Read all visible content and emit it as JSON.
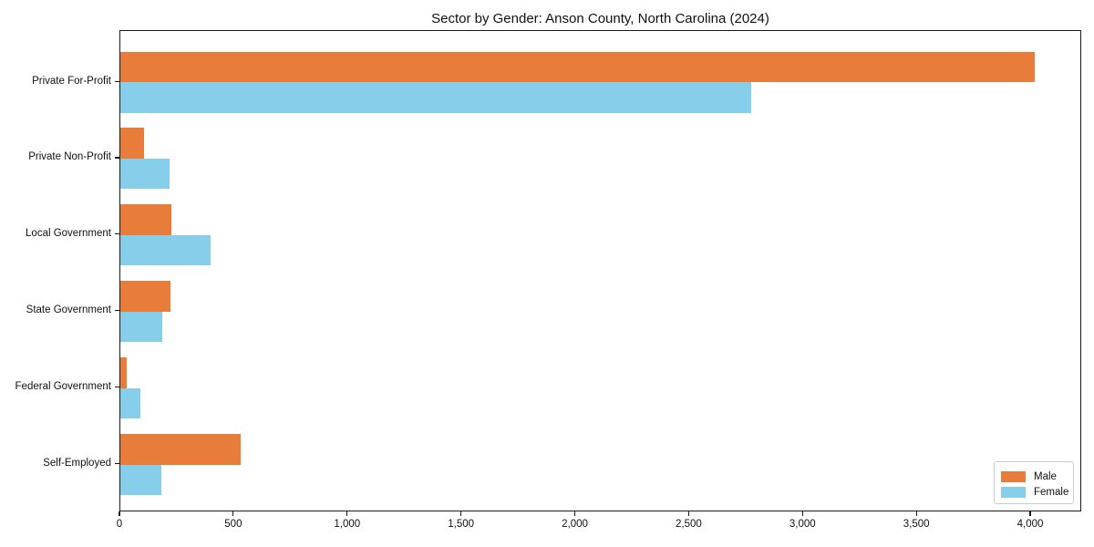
{
  "chart_data": {
    "type": "bar",
    "orientation": "horizontal",
    "title": "Sector by Gender: Anson County, North Carolina (2024)",
    "categories": [
      "Private For-Profit",
      "Private Non-Profit",
      "Local Government",
      "State Government",
      "Federal Government",
      "Self-Employed"
    ],
    "series": [
      {
        "name": "Male",
        "color": "#E87D3B",
        "values": [
          4015,
          105,
          225,
          220,
          28,
          530
        ]
      },
      {
        "name": "Female",
        "color": "#87CEEB",
        "values": [
          2770,
          215,
          395,
          185,
          90,
          180
        ]
      }
    ],
    "xlabel": "",
    "ylabel": "",
    "xlim": [
      0,
      4224
    ],
    "x_ticks": [
      0,
      500,
      1000,
      1500,
      2000,
      2500,
      3000,
      3500,
      4000
    ],
    "x_tick_labels": [
      "0",
      "500",
      "1,000",
      "1,500",
      "2,000",
      "2,500",
      "3,000",
      "3,500",
      "4,000"
    ],
    "grid": false,
    "legend_position": "lower-right",
    "colors": {
      "male": "#E87D3B",
      "female": "#87CEEB",
      "spine": "#1a1a1a",
      "background": "#ffffff"
    }
  }
}
